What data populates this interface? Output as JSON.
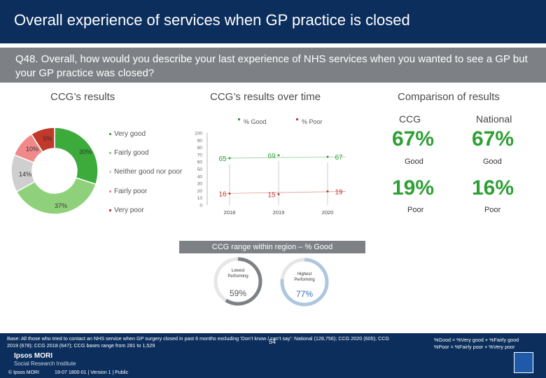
{
  "header": {
    "title": "Overall experience of services when GP practice is closed"
  },
  "question": {
    "text": "Q48. Overall, how would you describe your last experience of NHS services when you wanted to see a GP but your GP practice was closed?"
  },
  "sections": {
    "ccg_results": "CCG’s results",
    "over_time": "CCG’s results over time",
    "comparison": "Comparison of results"
  },
  "donut": {
    "labels": [
      "30%",
      "37%",
      "14%",
      "10%",
      "9%"
    ],
    "legend": [
      "Very good",
      "Fairly good",
      "Neither good nor poor",
      "Fairly poor",
      "Very poor"
    ]
  },
  "chart_data": {
    "type": "line",
    "categories": [
      "2018",
      "2019",
      "2020"
    ],
    "series": [
      {
        "name": "% Good",
        "values": [
          65,
          69,
          67
        ]
      },
      {
        "name": "% Poor",
        "values": [
          16,
          15,
          19
        ]
      }
    ],
    "ylim": [
      0,
      100
    ],
    "yticks": [
      "0",
      "10",
      "20",
      "30",
      "40",
      "50",
      "60",
      "70",
      "80",
      "90",
      "100"
    ]
  },
  "comparison": {
    "ccg_label": "CCG",
    "national_label": "National",
    "ccg_good": "67%",
    "national_good": "67%",
    "good_label": "Good",
    "ccg_poor": "19%",
    "national_poor": "16%",
    "poor_label": "Poor"
  },
  "range": {
    "bar_text": "CCG range within region – % Good",
    "lowest_label": "Lowest performing",
    "lowest_value": "59%",
    "highest_label": "Highest performing",
    "highest_value": "77%",
    "lowest_fill": 0.59,
    "highest_fill": 0.77
  },
  "footer": {
    "base": "Base: All those who tried to contact an NHS service when GP surgery closed in past 6 months excluding ‘Don’t know / can’t say’: National (128,756); CCG 2020 (605); CCG 2019 (678); CCG 2018 (647); CCG bases range from 281 to 1,529",
    "good_def": "%Good = %Very good + %Fairly good",
    "poor_def": "%Poor = %Fairly poor + %Very poor",
    "page_number": "54",
    "logo_line1": "Ipsos MORI",
    "logo_line2": "Social Research Institute",
    "copyright": "© Ipsos MORI",
    "version": "19-07 1800-01 | Version 1 | Public"
  },
  "colors": {
    "navy": "#0b2e5c",
    "grey_bar": "#7d8185",
    "green": "#2e9f35",
    "very_good": "#3daa3c",
    "fairly_good": "#8fd17a",
    "neither": "#cfcfcf",
    "fairly_poor": "#f08a8a",
    "very_poor": "#c0392b",
    "ring_grey": "#e6e6e6",
    "lowest_ring": "#7d8185",
    "highest_ring": "#aec6e0"
  }
}
